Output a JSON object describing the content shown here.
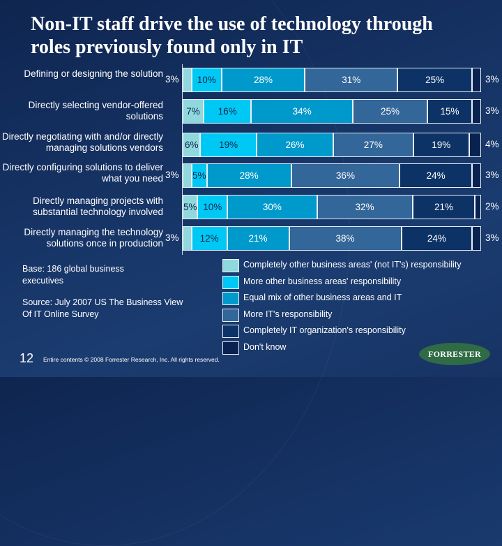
{
  "title": "Non-IT staff drive the use of technology through roles previously found only in IT",
  "notes": {
    "base": "Base: 186 global business executives",
    "source": "Source: July 2007 US The Business View Of IT Online Survey"
  },
  "footer": {
    "page_number": "12",
    "copyright": "Entire contents © 2008  Forrester Research, Inc. All rights reserved.",
    "logo": "FORRESTER"
  },
  "chart_data": {
    "type": "bar",
    "orientation": "horizontal",
    "stacked": true,
    "percent": true,
    "title": "Non-IT staff drive the use of technology through roles previously found only in IT",
    "xlim": [
      0,
      100
    ],
    "legend_position": "bottom-right",
    "grid": false,
    "categories": [
      "Defining or designing the solution",
      "Directly selecting vendor-offered solutions",
      "Directly negotiating with and/or directly managing solutions vendors",
      "Directly configuring solutions to deliver what you need",
      "Directly managing projects with substantial technology involved",
      "Directly managing the technology solutions once in production"
    ],
    "series": [
      {
        "name": "Completely other business areas' (not IT's) responsibility",
        "color": "#8fd9de",
        "text_color": "#10244a",
        "values": [
          3,
          7,
          6,
          3,
          5,
          3
        ],
        "label_outside": [
          true,
          false,
          false,
          true,
          false,
          true
        ]
      },
      {
        "name": "More other business areas' responsibility",
        "color": "#00c8f5",
        "text_color": "#10244a",
        "values": [
          10,
          16,
          19,
          5,
          10,
          12
        ]
      },
      {
        "name": "Equal mix of other business areas and IT",
        "color": "#0099cc",
        "text_color": "#ffffff",
        "values": [
          28,
          34,
          26,
          28,
          30,
          21
        ]
      },
      {
        "name": "More IT's responsibility",
        "color": "#336699",
        "text_color": "#ffffff",
        "values": [
          31,
          25,
          27,
          36,
          32,
          38
        ]
      },
      {
        "name": "Completely IT organization's responsibility",
        "color": "#0d3366",
        "text_color": "#ffffff",
        "values": [
          25,
          15,
          19,
          24,
          21,
          24
        ]
      },
      {
        "name": "Don't know",
        "color": "#0a2250",
        "text_color": "#ffffff",
        "values": [
          3,
          3,
          4,
          3,
          2,
          3
        ],
        "label_outside": [
          true,
          true,
          true,
          true,
          true,
          true
        ]
      }
    ]
  }
}
